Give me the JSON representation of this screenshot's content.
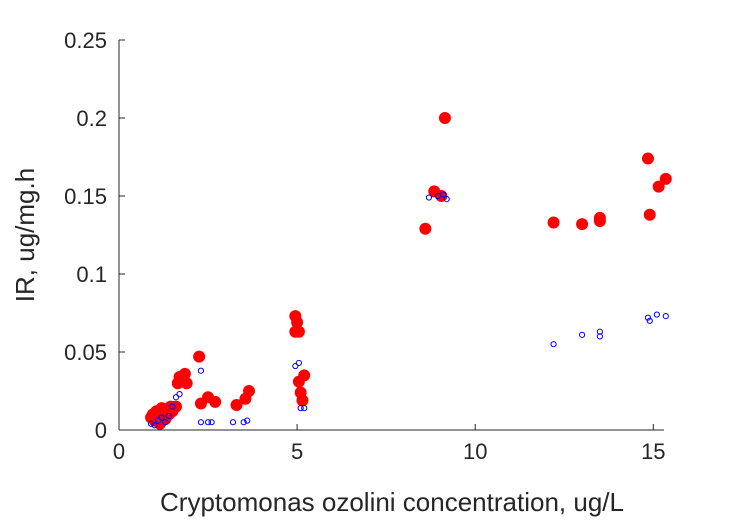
{
  "chart_data": {
    "type": "scatter",
    "xlabel": "Cryptomonas ozolini concentration, ug/L",
    "ylabel": "IR, ug/mg.h",
    "xlim": [
      0,
      15.3
    ],
    "ylim": [
      0,
      0.25
    ],
    "xticks": [
      0,
      5,
      10,
      15
    ],
    "xtick_labels": [
      "0",
      "5",
      "10",
      "15"
    ],
    "yticks": [
      0,
      0.05,
      0.1,
      0.15,
      0.2,
      0.25
    ],
    "ytick_labels": [
      "0",
      "0.05",
      "0.1",
      "0.15",
      "0.2",
      "0.25"
    ],
    "grid": false,
    "legend": "none",
    "series": [
      {
        "style": "filled-circle",
        "color": "#ff0000",
        "points": [
          [
            0.9,
            0.008
          ],
          [
            0.95,
            0.01
          ],
          [
            1.0,
            0.006
          ],
          [
            1.05,
            0.012
          ],
          [
            1.1,
            0.009
          ],
          [
            1.15,
            0.004
          ],
          [
            1.2,
            0.014
          ],
          [
            1.25,
            0.011
          ],
          [
            1.3,
            0.007
          ],
          [
            1.35,
            0.013
          ],
          [
            1.4,
            0.01
          ],
          [
            1.45,
            0.015
          ],
          [
            1.5,
            0.012
          ],
          [
            1.6,
            0.015
          ],
          [
            1.65,
            0.03
          ],
          [
            1.7,
            0.034
          ],
          [
            1.75,
            0.032
          ],
          [
            1.85,
            0.036
          ],
          [
            1.9,
            0.03
          ],
          [
            2.25,
            0.047
          ],
          [
            2.3,
            0.017
          ],
          [
            2.5,
            0.021
          ],
          [
            2.7,
            0.018
          ],
          [
            3.3,
            0.016
          ],
          [
            3.55,
            0.02
          ],
          [
            3.65,
            0.025
          ],
          [
            4.95,
            0.073
          ],
          [
            5.0,
            0.069
          ],
          [
            4.95,
            0.063
          ],
          [
            5.05,
            0.063
          ],
          [
            5.05,
            0.031
          ],
          [
            5.1,
            0.024
          ],
          [
            5.15,
            0.019
          ],
          [
            5.2,
            0.035
          ],
          [
            8.6,
            0.129
          ],
          [
            8.85,
            0.153
          ],
          [
            9.05,
            0.15
          ],
          [
            9.15,
            0.2
          ],
          [
            12.2,
            0.133
          ],
          [
            13.0,
            0.132
          ],
          [
            13.5,
            0.136
          ],
          [
            13.5,
            0.134
          ],
          [
            14.85,
            0.174
          ],
          [
            14.9,
            0.138
          ],
          [
            15.15,
            0.156
          ],
          [
            15.35,
            0.161
          ]
        ]
      },
      {
        "style": "open-circle",
        "color": "#0000ff",
        "points": [
          [
            0.9,
            0.004
          ],
          [
            1.0,
            0.003
          ],
          [
            1.1,
            0.006
          ],
          [
            1.2,
            0.008
          ],
          [
            1.3,
            0.005
          ],
          [
            1.4,
            0.009
          ],
          [
            1.5,
            0.015
          ],
          [
            1.6,
            0.021
          ],
          [
            1.7,
            0.023
          ],
          [
            2.3,
            0.038
          ],
          [
            2.3,
            0.005
          ],
          [
            2.5,
            0.005
          ],
          [
            2.6,
            0.005
          ],
          [
            3.2,
            0.005
          ],
          [
            3.5,
            0.005
          ],
          [
            3.6,
            0.006
          ],
          [
            4.95,
            0.041
          ],
          [
            5.05,
            0.043
          ],
          [
            5.1,
            0.014
          ],
          [
            5.2,
            0.014
          ],
          [
            8.7,
            0.149
          ],
          [
            8.95,
            0.15
          ],
          [
            9.1,
            0.151
          ],
          [
            9.2,
            0.148
          ],
          [
            12.2,
            0.055
          ],
          [
            13.0,
            0.061
          ],
          [
            13.5,
            0.063
          ],
          [
            13.5,
            0.06
          ],
          [
            14.85,
            0.072
          ],
          [
            14.9,
            0.07
          ],
          [
            15.1,
            0.074
          ],
          [
            15.35,
            0.073
          ]
        ]
      }
    ]
  }
}
